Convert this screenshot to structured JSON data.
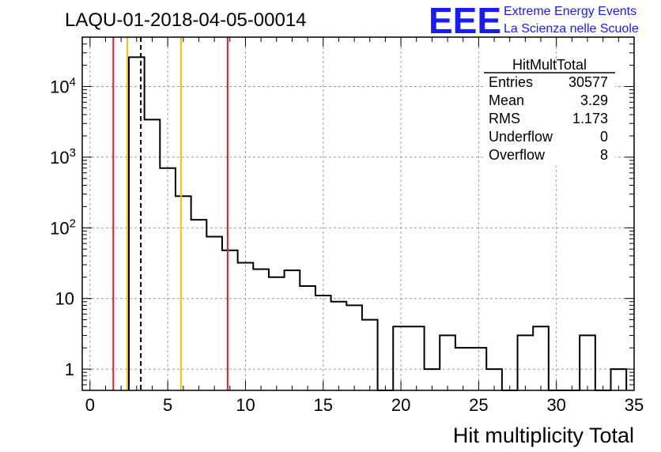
{
  "chart_data": {
    "type": "bar",
    "title": "LAQU-01-2018-04-05-00014",
    "xlabel": "Hit multiplicity Total",
    "ylabel": "",
    "xlim": [
      -0.5,
      35
    ],
    "ylim": [
      0.5,
      50000
    ],
    "yscale": "log",
    "grid": true,
    "x_ticks": [
      0,
      5,
      10,
      15,
      20,
      25,
      30,
      35
    ],
    "y_ticks": [
      {
        "value": 1,
        "label": "1"
      },
      {
        "value": 10,
        "label": "10"
      },
      {
        "value": 100,
        "label": "10",
        "exp": "2"
      },
      {
        "value": 1000,
        "label": "10",
        "exp": "3"
      },
      {
        "value": 10000,
        "label": "10",
        "exp": "4"
      }
    ],
    "bin_width": 1,
    "bin_edges_start": 2.5,
    "values": [
      26000,
      3400,
      700,
      280,
      130,
      75,
      48,
      32,
      26,
      20,
      25,
      15,
      11,
      9,
      8,
      5,
      0,
      4,
      4,
      1,
      3,
      2,
      2,
      1,
      0,
      3,
      4,
      0,
      0,
      3,
      0,
      1
    ],
    "vertical_lines": [
      {
        "x": 1.5,
        "color": "#e31a1c",
        "style": "solid"
      },
      {
        "x": 2.4,
        "color": "#f5c000",
        "style": "solid"
      },
      {
        "x": 3.27,
        "color": "#000000",
        "style": "dashed"
      },
      {
        "x": 5.85,
        "color": "#f5c000",
        "style": "solid"
      },
      {
        "x": 8.85,
        "color": "#e31a1c",
        "style": "solid"
      }
    ],
    "legend_position": "top-right"
  },
  "stats_box": {
    "title": "HitMultTotal",
    "rows": [
      {
        "label": "Entries",
        "value": "30577"
      },
      {
        "label": "Mean",
        "value": "3.29"
      },
      {
        "label": "RMS",
        "value": "1.173"
      },
      {
        "label": "Underflow",
        "value": "0"
      },
      {
        "label": "Overflow",
        "value": "8"
      }
    ]
  },
  "logo": {
    "acronym": "EEE",
    "line1": "Extreme Energy Events",
    "line2": "La Scienza nelle Scuole",
    "color": "#1a1aff"
  }
}
